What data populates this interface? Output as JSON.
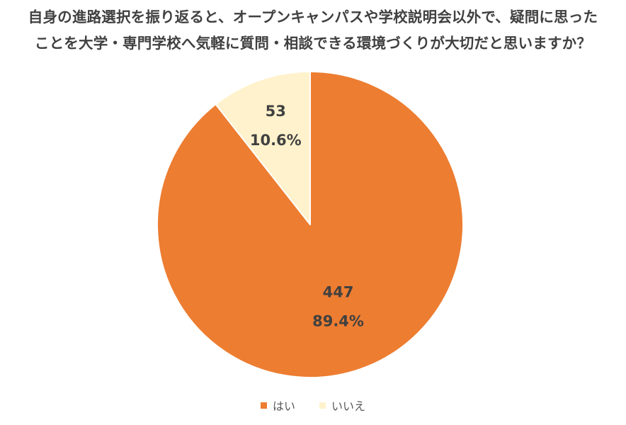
{
  "chart_data": {
    "type": "pie",
    "title_lines": [
      "自身の進路選択を振り返ると、オープンキャンパスや学校説明会以外で、疑問に思った",
      "ことを大学・専門学校へ気軽に質問・相談できる環境づくりが大切だと思いますか？"
    ],
    "slices": [
      {
        "name": "はい",
        "value": 447,
        "percent_label": "89.4%",
        "color": "#ED7D31"
      },
      {
        "name": "いいえ",
        "value": 53,
        "percent_label": "10.6%",
        "color": "#FFF2CC"
      }
    ],
    "legend_position": "bottom",
    "start_angle_deg": 0,
    "direction": "clockwise"
  }
}
